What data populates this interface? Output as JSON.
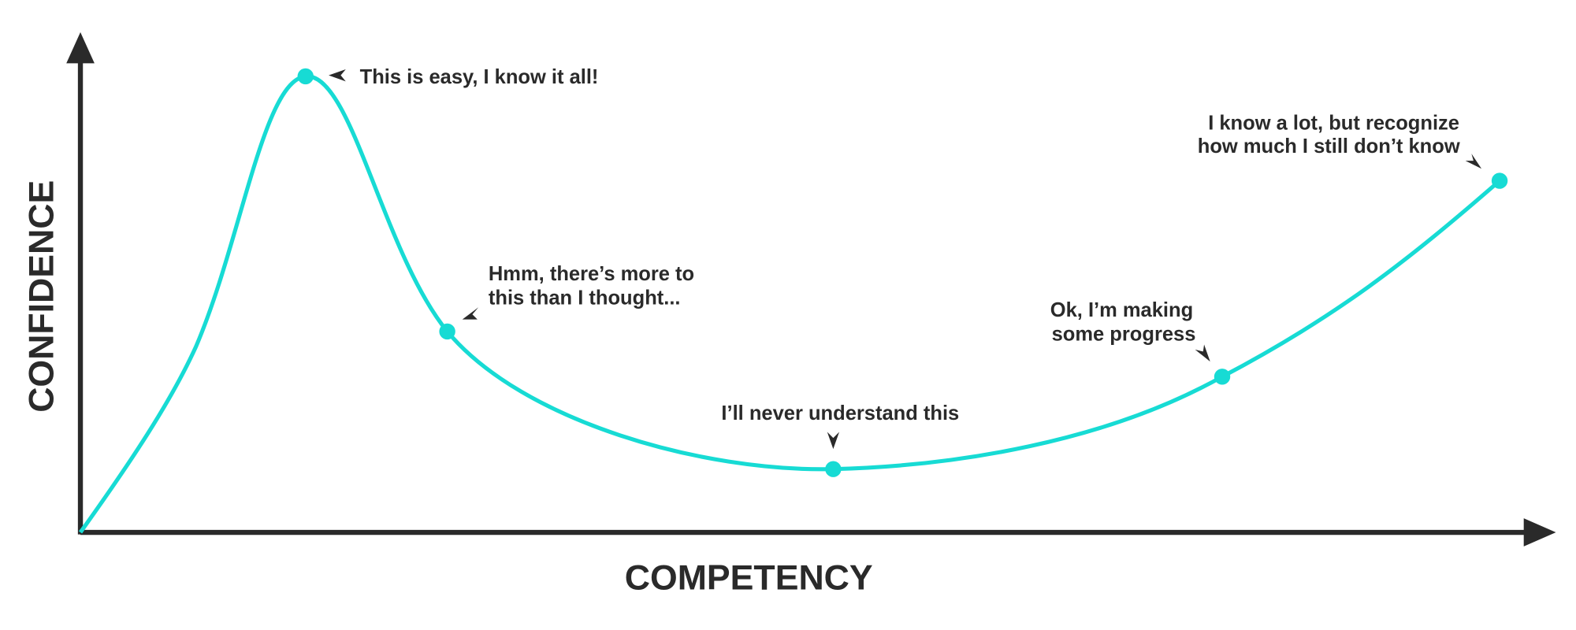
{
  "axes": {
    "x_label": "COMPETENCY",
    "y_label": "CONFIDENCE"
  },
  "annotations": [
    {
      "lines": [
        "This is easy, I know it all!"
      ]
    },
    {
      "lines": [
        "Hmm, there’s more to",
        "this than I thought..."
      ]
    },
    {
      "lines": [
        "I’ll never understand this"
      ]
    },
    {
      "lines": [
        "Ok, I’m making",
        "some progress"
      ]
    },
    {
      "lines": [
        "I know a lot, but recognize",
        "how much I still don’t know"
      ]
    }
  ]
}
